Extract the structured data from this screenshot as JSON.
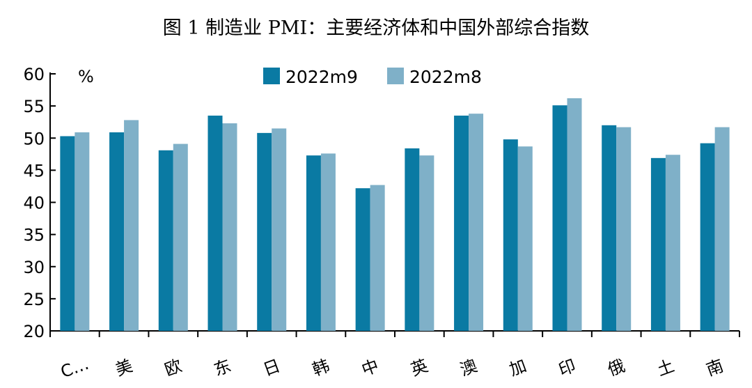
{
  "chart_data": {
    "type": "bar",
    "title": "图 1 制造业 PMI：主要经济体和中国外部综合指数",
    "ylabel": "%",
    "xlabel": "",
    "ylim": [
      20,
      60
    ],
    "yticks": [
      20,
      25,
      30,
      35,
      40,
      45,
      50,
      55,
      60
    ],
    "legend_position": "top-center",
    "categories": [
      "C…",
      "美",
      "欧",
      "东",
      "日",
      "韩",
      "中",
      "英",
      "澳",
      "加",
      "印",
      "俄",
      "土",
      "南"
    ],
    "series": [
      {
        "name": "2022m9",
        "color": "#0a7aa3",
        "values": [
          50.3,
          50.9,
          48.1,
          53.5,
          50.8,
          47.3,
          42.2,
          48.4,
          53.5,
          49.8,
          55.1,
          52.0,
          46.9,
          49.2
        ]
      },
      {
        "name": "2022m8",
        "color": "#7fb0c8",
        "values": [
          50.9,
          52.8,
          49.1,
          52.3,
          51.5,
          47.6,
          42.7,
          47.3,
          53.8,
          48.7,
          56.2,
          51.7,
          47.4,
          51.7
        ]
      }
    ]
  }
}
